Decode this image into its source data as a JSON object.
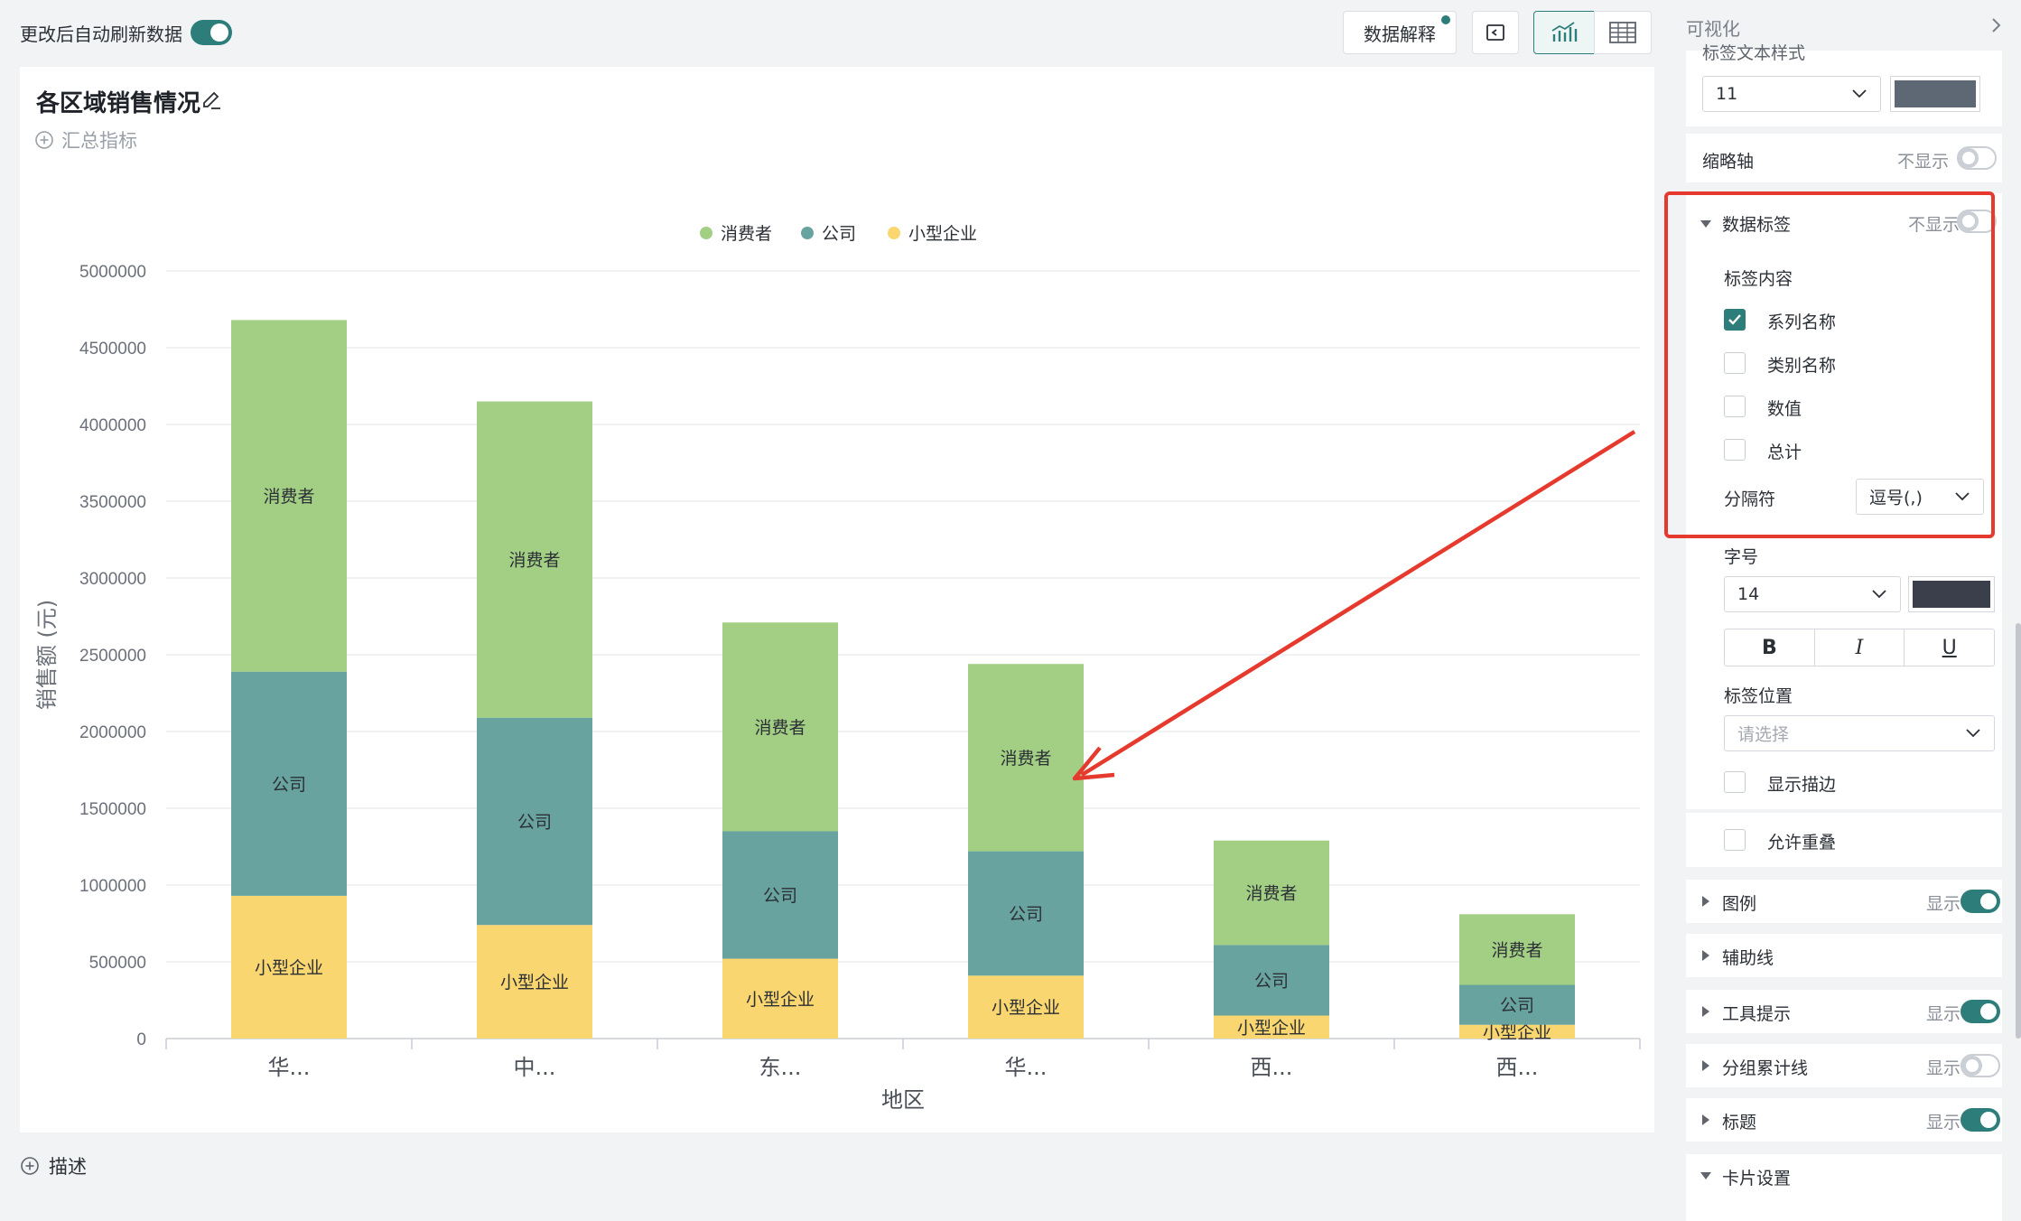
{
  "topbar": {
    "auto_refresh_label": "更改后自动刷新数据",
    "auto_refresh_on": true,
    "explain_label": "数据解释"
  },
  "card": {
    "title": "各区域销售情况",
    "summary_label": "汇总指标",
    "description_label": "描述"
  },
  "chart_data": {
    "type": "bar",
    "stacked": true,
    "categories": [
      "华...",
      "中...",
      "东...",
      "华...",
      "西...",
      "西..."
    ],
    "series": [
      {
        "name": "小型企业",
        "color": "#f9d66f",
        "values": [
          930000,
          740000,
          520000,
          410000,
          150000,
          90000
        ]
      },
      {
        "name": "公司",
        "color": "#68a39f",
        "values": [
          1460000,
          1350000,
          830000,
          810000,
          460000,
          260000
        ]
      },
      {
        "name": "消费者",
        "color": "#a3cf84",
        "values": [
          2290000,
          2060000,
          1360000,
          1220000,
          680000,
          460000
        ]
      }
    ],
    "legend_order": [
      "消费者",
      "公司",
      "小型企业"
    ],
    "legend_position": "top",
    "xlabel": "地区",
    "ylabel": "销售额 (元)",
    "ylim": [
      0,
      5000000
    ],
    "yticks": [
      0,
      500000,
      1000000,
      1500000,
      2000000,
      2500000,
      3000000,
      3500000,
      4000000,
      4500000,
      5000000
    ],
    "grid": true,
    "data_labels": "series-name"
  },
  "panel": {
    "title": "可视化",
    "label_text_style": "标签文本样式",
    "label_font_size": "11",
    "label_color": "#5e6875",
    "thumb_axis": "缩略轴",
    "thumb_axis_state": "不显示",
    "data_labels": {
      "title": "数据标签",
      "state": "不显示",
      "content_label": "标签内容",
      "options": [
        {
          "label": "系列名称",
          "checked": true
        },
        {
          "label": "类别名称",
          "checked": false
        },
        {
          "label": "数值",
          "checked": false
        },
        {
          "label": "总计",
          "checked": false
        }
      ],
      "separator_label": "分隔符",
      "separator_value": "逗号(,)"
    },
    "font_size_label": "字号",
    "font_size_value": "14",
    "font_color": "#3a3f4b",
    "bold": "B",
    "italic": "I",
    "underline": "U",
    "position_label": "标签位置",
    "position_placeholder": "请选择",
    "show_stroke": "显示描边",
    "allow_overlap": "允许重叠",
    "sections": [
      {
        "label": "图例",
        "state": "显示",
        "toggle": "on"
      },
      {
        "label": "辅助线",
        "state": "",
        "toggle": "none"
      },
      {
        "label": "工具提示",
        "state": "显示",
        "toggle": "on"
      },
      {
        "label": "分组累计线",
        "state": "显示",
        "toggle": "off"
      },
      {
        "label": "标题",
        "state": "显示",
        "toggle": "on"
      }
    ],
    "card_settings": "卡片设置"
  },
  "colors": {
    "accent": "#2d7d7a",
    "highlight": "#e53a2d"
  }
}
